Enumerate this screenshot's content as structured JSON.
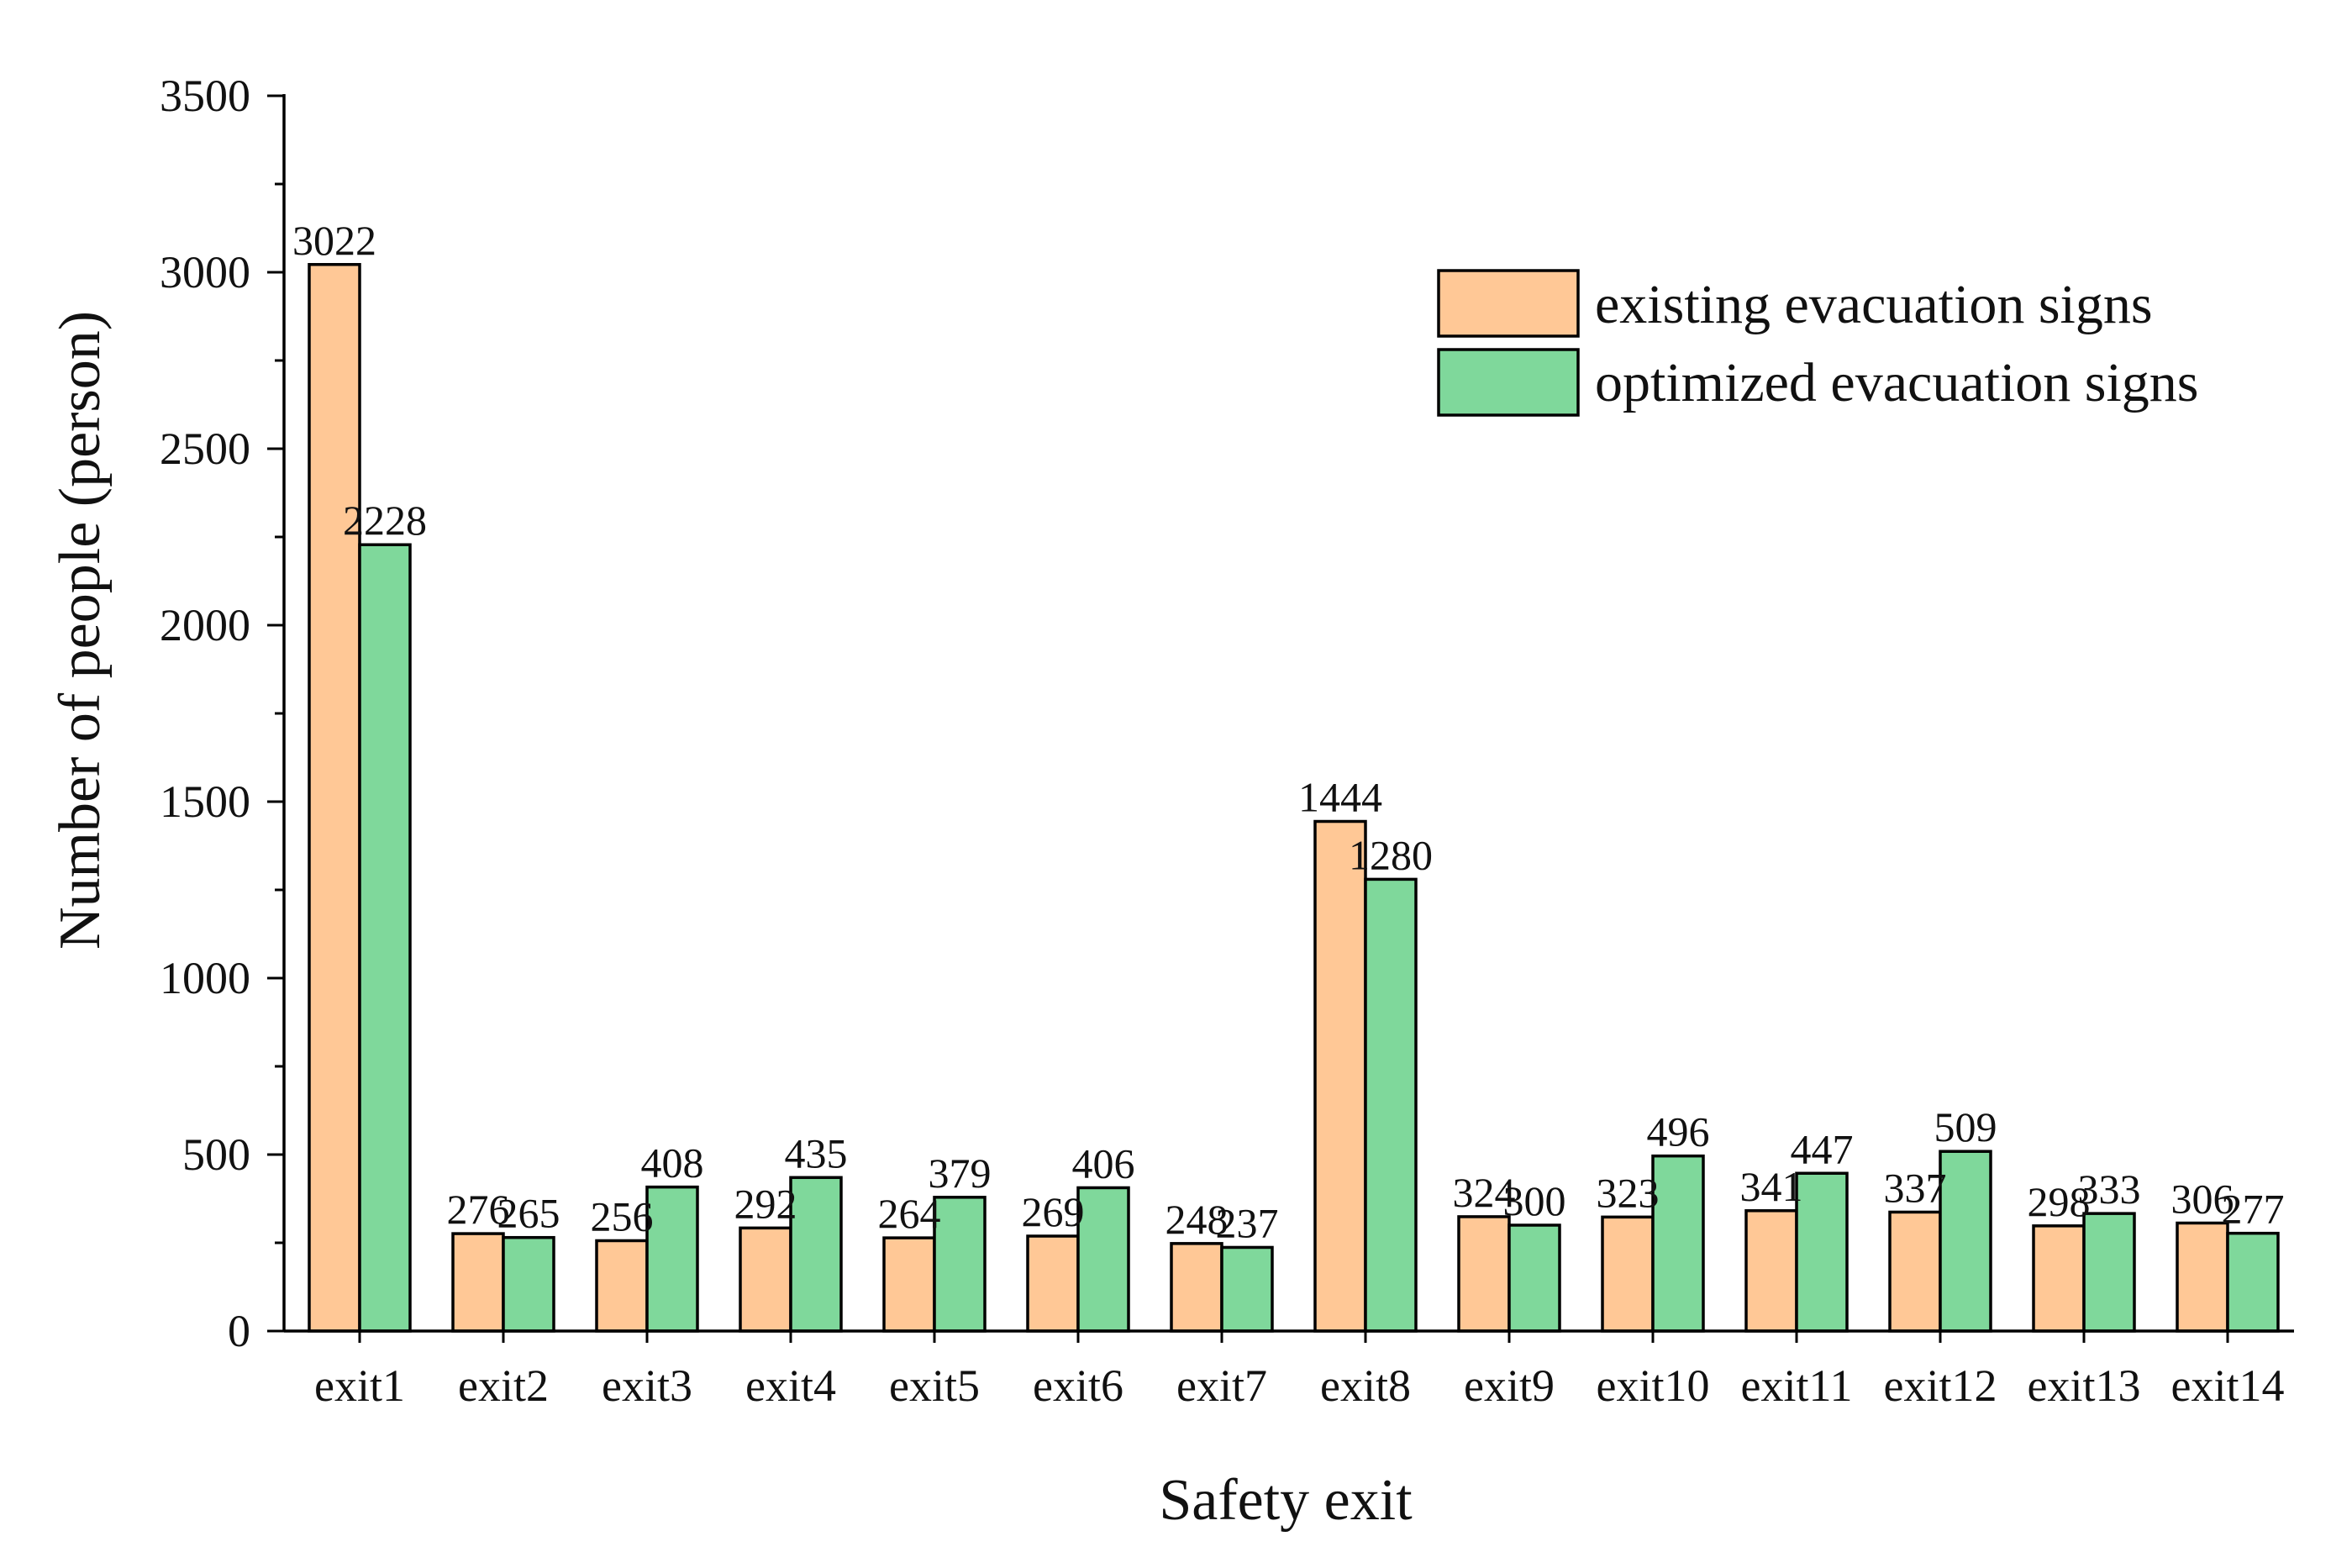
{
  "chart_data": {
    "type": "bar",
    "title": "",
    "xlabel": "Safety exit",
    "ylabel": "Number of people (person)",
    "ylim": [
      0,
      3500
    ],
    "yticks": [
      0,
      500,
      1000,
      1500,
      2000,
      2500,
      3000,
      3500
    ],
    "grid": false,
    "legend_position": "top-right",
    "categories": [
      "exit1",
      "exit2",
      "exit3",
      "exit4",
      "exit5",
      "exit6",
      "exit7",
      "exit8",
      "exit9",
      "exit10",
      "exit11",
      "exit12",
      "exit13",
      "exit14"
    ],
    "series": [
      {
        "name": "existing evacuation signs",
        "color": "#FFC896",
        "values": [
          3022,
          276,
          256,
          292,
          264,
          269,
          248,
          1444,
          324,
          323,
          341,
          337,
          298,
          306
        ]
      },
      {
        "name": "optimized evacuation signs",
        "color": "#7FD89B",
        "values": [
          2228,
          265,
          408,
          435,
          379,
          406,
          237,
          1280,
          300,
          496,
          447,
          509,
          333,
          277
        ]
      }
    ]
  }
}
